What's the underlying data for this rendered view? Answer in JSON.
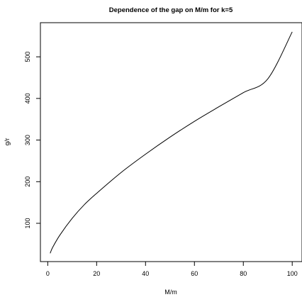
{
  "chart_data": {
    "type": "line",
    "title": "Dependence of the gap on M/m for  k=5",
    "xlabel": "M/m",
    "ylabel": "g/r",
    "xlim": [
      -3,
      104
    ],
    "ylim": [
      8,
      582
    ],
    "x_ticks": [
      0,
      20,
      40,
      60,
      80,
      100
    ],
    "y_ticks": [
      100,
      200,
      300,
      400,
      500
    ],
    "grid": false,
    "legend": "none",
    "series": [
      {
        "x": [
          1,
          2,
          5,
          10,
          15,
          20,
          30,
          40,
          50,
          60,
          70,
          80,
          90,
          100
        ],
        "y": [
          28,
          42,
          72,
          112,
          145,
          172,
          222,
          266,
          307,
          345,
          380,
          414,
          447,
          560
        ]
      }
    ]
  }
}
